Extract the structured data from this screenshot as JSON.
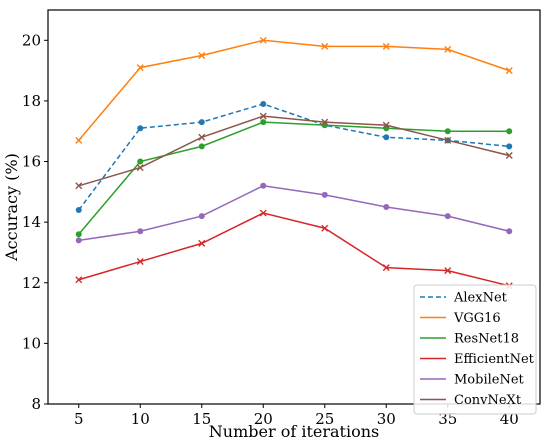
{
  "chart_data": {
    "type": "line",
    "xlabel": "Number of iterations",
    "ylabel": "Accuracy (%)",
    "x": [
      5,
      10,
      15,
      20,
      25,
      30,
      35,
      40
    ],
    "xlim": [
      2.5,
      42.5
    ],
    "ylim": [
      8,
      21
    ],
    "xticks": [
      5,
      10,
      15,
      20,
      25,
      30,
      35,
      40
    ],
    "yticks": [
      8,
      10,
      12,
      14,
      16,
      18,
      20
    ],
    "grid": false,
    "legend_position": "lower-right",
    "series": [
      {
        "name": "AlexNet",
        "color": "#1f77b4",
        "dash": true,
        "marker": "dot",
        "values": [
          14.4,
          17.1,
          17.3,
          17.9,
          17.2,
          16.8,
          16.7,
          16.5
        ]
      },
      {
        "name": "VGG16",
        "color": "#ff7f0e",
        "dash": false,
        "marker": "x",
        "values": [
          16.7,
          19.1,
          19.5,
          20.0,
          19.8,
          19.8,
          19.7,
          19.0
        ]
      },
      {
        "name": "ResNet18",
        "color": "#2ca02c",
        "dash": false,
        "marker": "dot",
        "values": [
          13.6,
          16.0,
          16.5,
          17.3,
          17.2,
          17.1,
          17.0,
          17.0
        ]
      },
      {
        "name": "EfficientNet",
        "color": "#d62728",
        "dash": false,
        "marker": "x",
        "values": [
          12.1,
          12.7,
          13.3,
          14.3,
          13.8,
          12.5,
          12.4,
          11.9
        ]
      },
      {
        "name": "MobileNet",
        "color": "#9467bd",
        "dash": false,
        "marker": "dot",
        "values": [
          13.4,
          13.7,
          14.2,
          15.2,
          14.9,
          14.5,
          14.2,
          13.7
        ]
      },
      {
        "name": "ConvNeXt",
        "color": "#8c564b",
        "dash": false,
        "marker": "x",
        "values": [
          15.2,
          15.8,
          16.8,
          17.5,
          17.3,
          17.2,
          16.7,
          16.2
        ]
      }
    ]
  }
}
